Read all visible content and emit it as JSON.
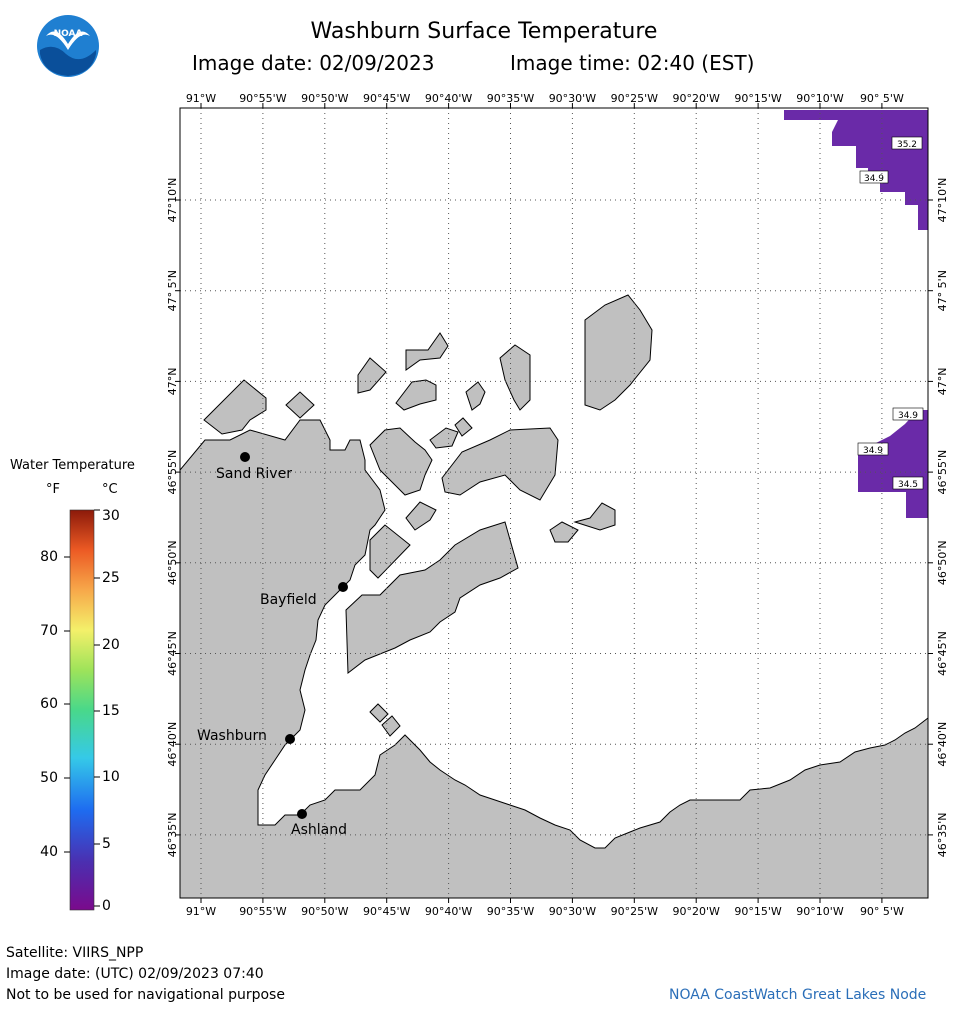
{
  "header": {
    "title": "Washburn Surface Temperature",
    "image_date": "Image date: 02/09/2023",
    "image_time": "Image time: 02:40 (EST)"
  },
  "logo": {
    "text": "NOAA",
    "icon": "noaa-logo-icon"
  },
  "map": {
    "lon_labels": [
      "91°W",
      "90°55'W",
      "90°50'W",
      "90°45'W",
      "90°40'W",
      "90°35'W",
      "90°30'W",
      "90°25'W",
      "90°20'W",
      "90°15'W",
      "90°10'W",
      "90° 5'W"
    ],
    "lat_labels": [
      "47°10'N",
      "47° 5'N",
      "47°N",
      "46°55'N",
      "46°50'N",
      "46°45'N",
      "46°40'N",
      "46°35'N"
    ],
    "land_color": "#c0c0c0",
    "water_color": "#ffffff",
    "ice_color": "#6a2aa8",
    "places": [
      {
        "name": "Sand River"
      },
      {
        "name": "Bayfield"
      },
      {
        "name": "Washburn"
      },
      {
        "name": "Ashland"
      }
    ],
    "temperature_readings": [
      "35.2",
      "34.9",
      "34.9",
      "34.9",
      "34.5"
    ]
  },
  "legend": {
    "title": "Water Temperature",
    "unit_f": "°F",
    "unit_c": "°C",
    "f_ticks": [
      "80",
      "70",
      "60",
      "50",
      "40"
    ],
    "c_ticks": [
      "30",
      "25",
      "20",
      "15",
      "10",
      "5",
      "0"
    ]
  },
  "footer": {
    "satellite": "Satellite: VIIRS_NPP",
    "utc_date": "Image date: (UTC) 02/09/2023  07:40",
    "disclaimer": "Not to be used for navigational purpose",
    "credit": "NOAA CoastWatch Great Lakes Node"
  }
}
